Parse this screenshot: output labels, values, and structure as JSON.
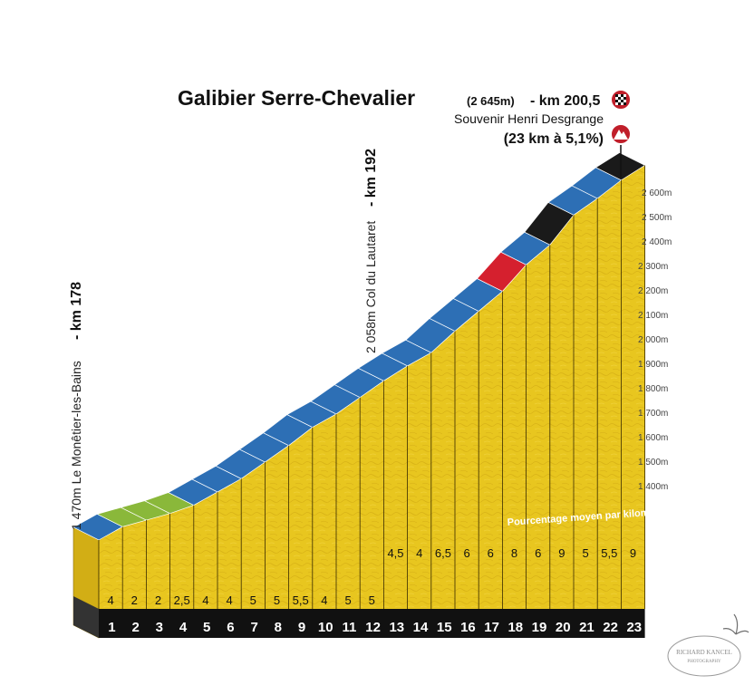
{
  "climb": {
    "name": "Galibier Serre-Chevalier",
    "summit_altitude": "(2 645m)",
    "summit_km": "- km 200,5",
    "souvenir": "Souvenir Henri Desgrange",
    "stats": "(23 km à 5,1%)"
  },
  "waypoints": {
    "start_text": "1 470m Le Monêtier-les-Bains",
    "start_km": "- km 178",
    "lautaret_text": "2 058m Col du Lautaret",
    "lautaret_km": "- km 192"
  },
  "legend_note": "Pourcentage moyen par kilomètre",
  "watermark": {
    "line1": "RICHARD KANCEL",
    "line2": "PHOTOGRAPHY"
  },
  "colors": {
    "terrain": "#e8c61f",
    "terrain_side": "#d2ae15",
    "slope_0_3": "#8ab83a",
    "slope_3_6": "#2d6fb5",
    "slope_6_9": "#d5202e",
    "slope_9_plus": "#1a1a1a",
    "base": "#111111"
  },
  "chart_data": {
    "type": "area",
    "title": "Galibier Serre-Chevalier",
    "xlabel": "",
    "ylabel": "",
    "ylim": [
      1400,
      2600
    ],
    "x_km_markers": [
      "1",
      "2",
      "3",
      "4",
      "5",
      "6",
      "7",
      "8",
      "9",
      "10",
      "11",
      "12",
      "13",
      "14",
      "15",
      "16",
      "17",
      "18",
      "19",
      "20",
      "21",
      "22",
      "23"
    ],
    "gradient_labels": [
      "4",
      "2",
      "2",
      "2,5",
      "4",
      "4",
      "5",
      "5",
      "5,5",
      "4",
      "5",
      "5",
      "4,5",
      "4",
      "6,5",
      "6",
      "6",
      "8",
      "6",
      "9",
      "5",
      "5,5",
      "9"
    ],
    "gradients": [
      4,
      2,
      2,
      2.5,
      4,
      4,
      5,
      5,
      5.5,
      4,
      5,
      5,
      4.5,
      4,
      6.5,
      6,
      6,
      8,
      6,
      9,
      5,
      5.5,
      9
    ],
    "y_tick_labels": [
      "1 400m",
      "1 500m",
      "1 600m",
      "1 700m",
      "1 800m",
      "1 900m",
      "2 000m",
      "2 100m",
      "2 200m",
      "2 300m",
      "2 400m",
      "2 500m",
      "2 600m"
    ],
    "y_ticks": [
      1400,
      1500,
      1600,
      1700,
      1800,
      1900,
      2000,
      2100,
      2200,
      2300,
      2400,
      2500,
      2600
    ],
    "start_altitude": 1470,
    "summit_altitude": 2645
  }
}
